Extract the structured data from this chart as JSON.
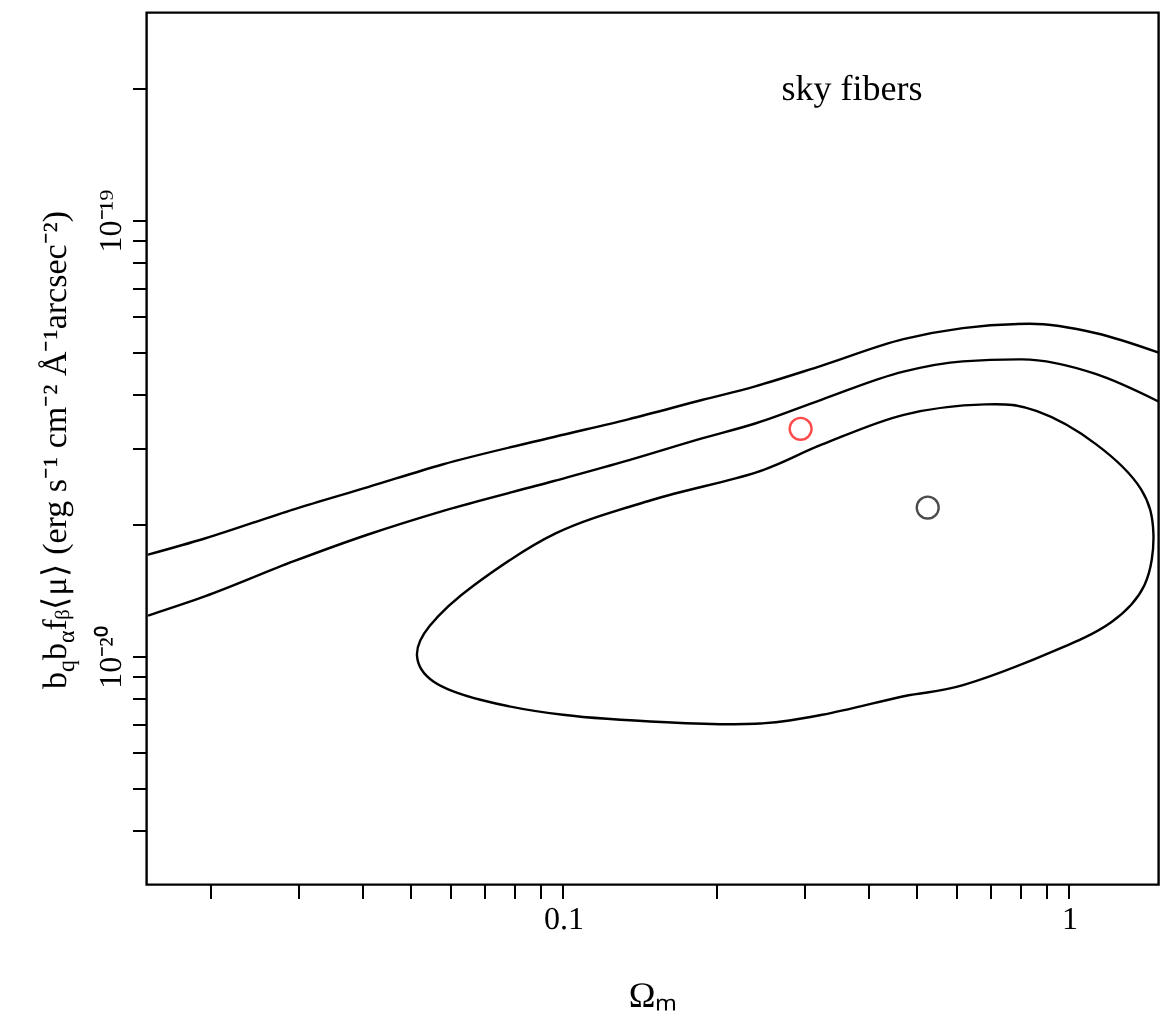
{
  "chart_data": {
    "type": "line",
    "xlabel": "Ωₘ",
    "ylabel": "b$_{q}$b$_{α}$fᵦ⟨μ⟩ (erg s⁻¹ cm⁻² Å⁻¹arcsec⁻²)",
    "annotations": [
      "sky fibers"
    ],
    "log": "xy",
    "grid": false,
    "line_style": "solid",
    "xlim": [
      0.015,
      1.5
    ],
    "ylim": [
      3e-21,
      3e-19
    ],
    "xticks": [
      {
        "value": 0.02,
        "label": null
      },
      {
        "value": 0.03,
        "label": null
      },
      {
        "value": 0.04,
        "label": null
      },
      {
        "value": 0.05,
        "label": null
      },
      {
        "value": 0.06,
        "label": null
      },
      {
        "value": 0.07,
        "label": null
      },
      {
        "value": 0.08,
        "label": null
      },
      {
        "value": 0.09,
        "label": null
      },
      0.1,
      {
        "value": 0.2,
        "label": null
      },
      {
        "value": 0.3,
        "label": null
      },
      {
        "value": 0.4,
        "label": null
      },
      {
        "value": 0.5,
        "label": null
      },
      {
        "value": 0.6,
        "label": null
      },
      {
        "value": 0.7,
        "label": null
      },
      {
        "value": 0.8,
        "label": null
      },
      {
        "value": 0.9,
        "label": null
      },
      1
    ],
    "yticks": [
      {
        "value": 4e-21,
        "label": null
      },
      {
        "value": 5e-21,
        "label": null
      },
      {
        "value": 6e-21,
        "label": null
      },
      {
        "value": 7e-21,
        "label": null
      },
      {
        "value": 8e-21,
        "label": null
      },
      {
        "value": 9e-21,
        "label": null
      },
      {
        "value": 1e-20,
        "label": "10⁻²⁰"
      },
      {
        "value": 2e-20,
        "label": null
      },
      {
        "value": 3e-20,
        "label": null
      },
      {
        "value": 4e-20,
        "label": null
      },
      {
        "value": 5e-20,
        "label": null
      },
      {
        "value": 6e-20,
        "label": null
      },
      {
        "value": 7e-20,
        "label": null
      },
      {
        "value": 8e-20,
        "label": null
      },
      {
        "value": 9e-20,
        "label": null
      },
      {
        "value": 1e-19,
        "label": "10⁻¹⁹"
      },
      {
        "value": 2e-19,
        "label": null
      }
    ],
    "series": [
      {
        "color": "#000000",
        "x": [
          0.0152,
          0.0196,
          0.0294,
          0.0412,
          0.0578,
          0.096,
          0.1346,
          0.189,
          0.239,
          0.324,
          0.471,
          0.617,
          0.836,
          1.133,
          1.5
        ],
        "values": [
          1.71e-20,
          1.86e-20,
          2.17e-20,
          2.44e-20,
          2.75e-20,
          3.18e-20,
          3.49e-20,
          3.87e-20,
          4.15e-20,
          4.63e-20,
          5.33e-20,
          5.65e-20,
          5.78e-20,
          5.5e-20,
          4.97e-20
        ]
      },
      {
        "color": "#000000",
        "x": [
          0.0152,
          0.0196,
          0.0294,
          0.0412,
          0.0578,
          0.096,
          0.1346,
          0.189,
          0.239,
          0.324,
          0.471,
          0.617,
          0.808,
          1.133,
          1.5
        ],
        "values": [
          1.24e-20,
          1.37e-20,
          1.65e-20,
          1.9e-20,
          2.15e-20,
          2.52e-20,
          2.81e-20,
          3.16e-20,
          3.41e-20,
          3.87e-20,
          4.49e-20,
          4.74e-20,
          4.79e-20,
          4.43e-20,
          3.84e-20
        ]
      },
      {
        "type": "scatter",
        "color": "#ff0000",
        "marker": "circle",
        "x": [
          0.295
        ],
        "values": [
          3.32e-20
        ]
      },
      {
        "type": "scatter",
        "color": "#000000",
        "marker": "circle",
        "x": [
          0.526
        ],
        "values": [
          2.19e-20
        ]
      }
    ]
  }
}
